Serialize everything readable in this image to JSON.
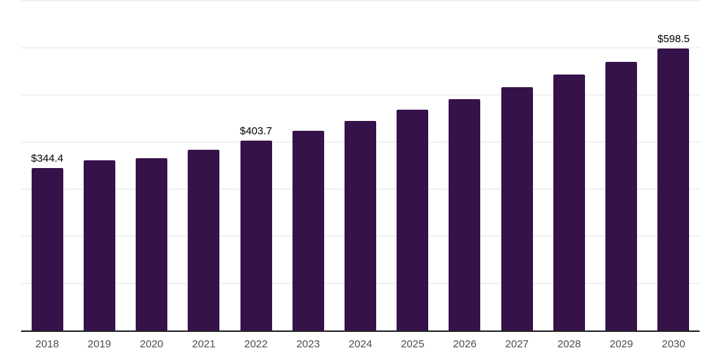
{
  "chart_data": {
    "type": "bar",
    "title": "",
    "xlabel": "",
    "ylabel": "",
    "categories": [
      "2018",
      "2019",
      "2020",
      "2021",
      "2022",
      "2023",
      "2024",
      "2025",
      "2026",
      "2027",
      "2028",
      "2029",
      "2030"
    ],
    "values": [
      344.4,
      361.6,
      366.1,
      383.6,
      403.7,
      424.1,
      445.5,
      468.0,
      491.7,
      516.5,
      542.6,
      570.1,
      598.5
    ],
    "value_labels": [
      {
        "category": "2018",
        "label": "$344.4"
      },
      {
        "category": "2022",
        "label": "$403.7"
      },
      {
        "category": "2030",
        "label": "$598.5"
      }
    ],
    "ylim": [
      0,
      700
    ],
    "grid": true,
    "grid_interval": 100,
    "y_tick_labels_visible": false,
    "legend": false,
    "legend_position": "none",
    "colors": {
      "bar": "#36124b",
      "grid": "#f1f1f1",
      "axis": "#1f1f1f",
      "tick_label": "#4d4d4d",
      "value_label": "#000000",
      "background": "#ffffff"
    }
  }
}
